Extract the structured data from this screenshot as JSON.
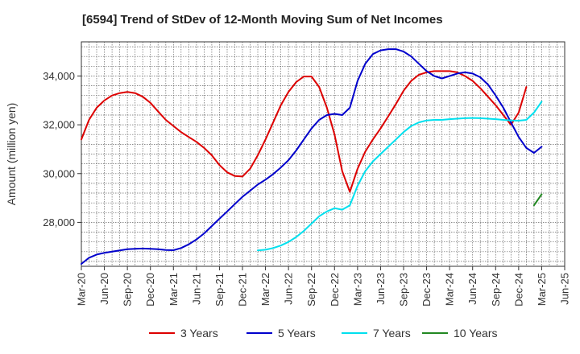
{
  "chart_data": {
    "type": "line",
    "title": "[6594]  Trend of StDev of 12-Month Moving Sum of Net Incomes",
    "xlabel": "",
    "ylabel": "Amount (million yen)",
    "x_tick_labels": [
      "Mar-20",
      "Jun-20",
      "Sep-20",
      "Dec-20",
      "Mar-21",
      "Jun-21",
      "Sep-21",
      "Dec-21",
      "Mar-22",
      "Jun-22",
      "Sep-22",
      "Dec-22",
      "Mar-23",
      "Jun-23",
      "Sep-23",
      "Dec-23",
      "Mar-24",
      "Jun-24",
      "Sep-24",
      "Dec-24",
      "Mar-25",
      "Jun-25"
    ],
    "x_range": [
      "2020-03",
      "2025-06"
    ],
    "y_ticks": [
      28000,
      30000,
      32000,
      34000
    ],
    "y_tick_labels": [
      "28,000",
      "30,000",
      "32,000",
      "34,000"
    ],
    "ylim": [
      26200,
      35400
    ],
    "grid": true,
    "legend_position": "bottom",
    "series": [
      {
        "name": "3 Years",
        "color": "#dd0000",
        "start": "2020-03",
        "values": [
          31400,
          32200,
          32700,
          33000,
          33200,
          33300,
          33350,
          33300,
          33150,
          32900,
          32550,
          32200,
          31950,
          31700,
          31500,
          31300,
          31050,
          30750,
          30350,
          30050,
          29900,
          29880,
          30200,
          30750,
          31400,
          32100,
          32800,
          33350,
          33750,
          33980,
          33980,
          33550,
          32700,
          31600,
          30100,
          29250,
          30200,
          30900,
          31400,
          31850,
          32350,
          32850,
          33400,
          33800,
          34050,
          34150,
          34200,
          34200,
          34200,
          34150,
          34000,
          33800,
          33500,
          33150,
          32800,
          32400,
          32000,
          32500,
          33550
        ]
      },
      {
        "name": "5 Years",
        "color": "#0000cc",
        "start": "2020-03",
        "values": [
          26300,
          26550,
          26680,
          26750,
          26800,
          26850,
          26900,
          26920,
          26930,
          26920,
          26900,
          26870,
          26860,
          26950,
          27100,
          27300,
          27550,
          27850,
          28150,
          28450,
          28750,
          29050,
          29300,
          29550,
          29750,
          29980,
          30250,
          30550,
          30950,
          31400,
          31850,
          32200,
          32400,
          32450,
          32400,
          32700,
          33800,
          34500,
          34900,
          35050,
          35100,
          35100,
          35000,
          34800,
          34500,
          34200,
          34000,
          33900,
          34000,
          34100,
          34150,
          34100,
          33950,
          33650,
          33200,
          32700,
          32100,
          31500,
          31050,
          30850,
          31100
        ]
      },
      {
        "name": "7 Years",
        "color": "#00e0ee",
        "start": "2022-02",
        "values": [
          26850,
          26880,
          26950,
          27050,
          27200,
          27400,
          27650,
          27950,
          28250,
          28450,
          28580,
          28520,
          28700,
          29500,
          30100,
          30500,
          30800,
          31100,
          31400,
          31700,
          31950,
          32100,
          32180,
          32200,
          32200,
          32230,
          32250,
          32270,
          32280,
          32270,
          32250,
          32230,
          32200,
          32180,
          32170,
          32200,
          32500,
          32950
        ]
      },
      {
        "name": "10 Years",
        "color": "#228822",
        "start": "2025-02",
        "values": [
          28700,
          29150
        ]
      }
    ]
  }
}
